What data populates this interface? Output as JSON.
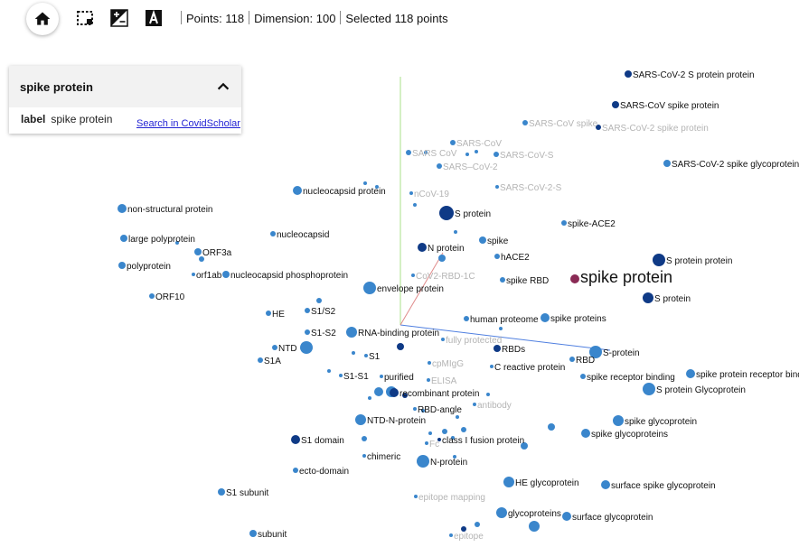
{
  "toolbar": {
    "icons": [
      "home-icon",
      "rectangle-select-icon",
      "night-mode-icon",
      "label-toggle-icon"
    ],
    "points_label": "Points: 118",
    "dimension_label": "Dimension: 100",
    "selected_label": "Selected 118 points"
  },
  "info_card": {
    "title": "spike protein",
    "collapse_icon": "chevron-up-icon",
    "field_name": "label",
    "field_value": "spike protein",
    "link_text": "Search in CovidScholar"
  },
  "colors": {
    "point": "#3a86cc",
    "point_dark": "#0f3a86",
    "point_selected": "#8a2a55",
    "label_dark": "#111111",
    "label_faded": "#b4b4b4",
    "axis_x": "#4f7fe0",
    "axis_y": "#a8e08a",
    "axis_z": "#e08a8a"
  },
  "labels": [
    {
      "text": "SARS-CoV-2 S protein protein",
      "faded": false
    },
    {
      "text": "SARS-CoV spike protein",
      "faded": false
    },
    {
      "text": "SARS-CoV spike",
      "faded": true
    },
    {
      "text": "SARS-CoV-2 spike protein",
      "faded": true
    },
    {
      "text": "SARS-CoV",
      "faded": true
    },
    {
      "text": "SARS CoV",
      "faded": true
    },
    {
      "text": "SARS-CoV-S",
      "faded": true
    },
    {
      "text": "SARS–CoV-2",
      "faded": true
    },
    {
      "text": "SARS-CoV-2 spike glycoprotein",
      "faded": false
    },
    {
      "text": "nucleocapsid protein",
      "faded": false
    },
    {
      "text": "nCoV-19",
      "faded": true
    },
    {
      "text": "SARS-CoV-2-S",
      "faded": true
    },
    {
      "text": "non-structural protein",
      "faded": false
    },
    {
      "text": "S protein",
      "faded": false
    },
    {
      "text": "spike-ACE2",
      "faded": false
    },
    {
      "text": "nucleocapsid",
      "faded": false
    },
    {
      "text": "large polyprotein",
      "faded": false
    },
    {
      "text": "ORF3a",
      "faded": false
    },
    {
      "text": "N protein",
      "faded": false
    },
    {
      "text": "spike",
      "faded": false
    },
    {
      "text": "hACE2",
      "faded": false
    },
    {
      "text": "S protein protein",
      "faded": false
    },
    {
      "text": "polyprotein",
      "faded": false
    },
    {
      "text": "orf1ab",
      "faded": false
    },
    {
      "text": "nucleocapsid phosphoprotein",
      "faded": false
    },
    {
      "text": "CoV2-RBD-1C",
      "faded": true
    },
    {
      "text": "spike RBD",
      "faded": false
    },
    {
      "text": "spike protein",
      "faded": false,
      "big": true
    },
    {
      "text": "envelope protein",
      "faded": false
    },
    {
      "text": "ORF10",
      "faded": false
    },
    {
      "text": "S protein",
      "faded": false
    },
    {
      "text": "S1/S2",
      "faded": false
    },
    {
      "text": "HE",
      "faded": false
    },
    {
      "text": "human proteome",
      "faded": false
    },
    {
      "text": "spike proteins",
      "faded": false
    },
    {
      "text": "S1-S2",
      "faded": false
    },
    {
      "text": "RNA-binding protein",
      "faded": false
    },
    {
      "text": "fully protected",
      "faded": true
    },
    {
      "text": "NTD",
      "faded": false
    },
    {
      "text": "RBDs",
      "faded": false
    },
    {
      "text": "S-protein",
      "faded": false
    },
    {
      "text": "S1A",
      "faded": false
    },
    {
      "text": "S1",
      "faded": false
    },
    {
      "text": "cpMIgG",
      "faded": true
    },
    {
      "text": "RBD",
      "faded": false
    },
    {
      "text": "C reactive protein",
      "faded": false
    },
    {
      "text": "S1-S1",
      "faded": false
    },
    {
      "text": "purified",
      "faded": false
    },
    {
      "text": "ELISA",
      "faded": true
    },
    {
      "text": "spike receptor binding",
      "faded": false
    },
    {
      "text": "spike protein receptor binding",
      "faded": false
    },
    {
      "text": "S protein Glycoprotein",
      "faded": false
    },
    {
      "text": "recombinant protein",
      "faded": false
    },
    {
      "text": "antibody",
      "faded": true
    },
    {
      "text": "RBD-angle",
      "faded": false
    },
    {
      "text": "NTD-N-protein",
      "faded": false
    },
    {
      "text": "spike glycoprotein",
      "faded": false
    },
    {
      "text": "spike glycoproteins",
      "faded": false
    },
    {
      "text": "S1 domain",
      "faded": false
    },
    {
      "text": "class I fusion protein",
      "faded": false
    },
    {
      "text": "Fc",
      "faded": true
    },
    {
      "text": "chimeric",
      "faded": false
    },
    {
      "text": "N-protein",
      "faded": false
    },
    {
      "text": "ecto-domain",
      "faded": false
    },
    {
      "text": "HE glycoprotein",
      "faded": false
    },
    {
      "text": "surface spike glycoprotein",
      "faded": false
    },
    {
      "text": "S1 subunit",
      "faded": false
    },
    {
      "text": "epitope mapping",
      "faded": true
    },
    {
      "text": "glycoproteins",
      "faded": false
    },
    {
      "text": "surface glycoprotein",
      "faded": false
    },
    {
      "text": "subunit",
      "faded": false
    },
    {
      "text": "epitope",
      "faded": true
    }
  ]
}
